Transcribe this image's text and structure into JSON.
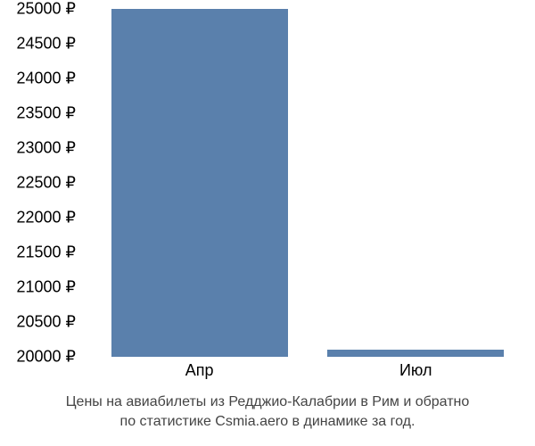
{
  "chart": {
    "type": "bar",
    "background_color": "#ffffff",
    "y_axis": {
      "min": 20000,
      "max": 25000,
      "tick_step": 500,
      "currency_symbol": "₽",
      "ticks": [
        20000,
        20500,
        21000,
        21500,
        22000,
        22500,
        23000,
        23500,
        24000,
        24500,
        25000
      ],
      "label_fontsize": 18,
      "label_color": "#000000"
    },
    "x_axis": {
      "label_fontsize": 18,
      "label_color": "#000000"
    },
    "bars": [
      {
        "label": "Апр",
        "value": 25000,
        "color": "#5a80ac",
        "center_pct": 26,
        "width_pct": 40
      },
      {
        "label": "Июл",
        "value": 20100,
        "color": "#5a80ac",
        "center_pct": 75,
        "width_pct": 40
      }
    ]
  },
  "caption": {
    "line1": "Цены на авиабилеты из Редджио-Калабрии в Рим и обратно",
    "line2": "по статистике Csmia.aero в динамике за год.",
    "fontsize": 16,
    "color": "#444444"
  }
}
